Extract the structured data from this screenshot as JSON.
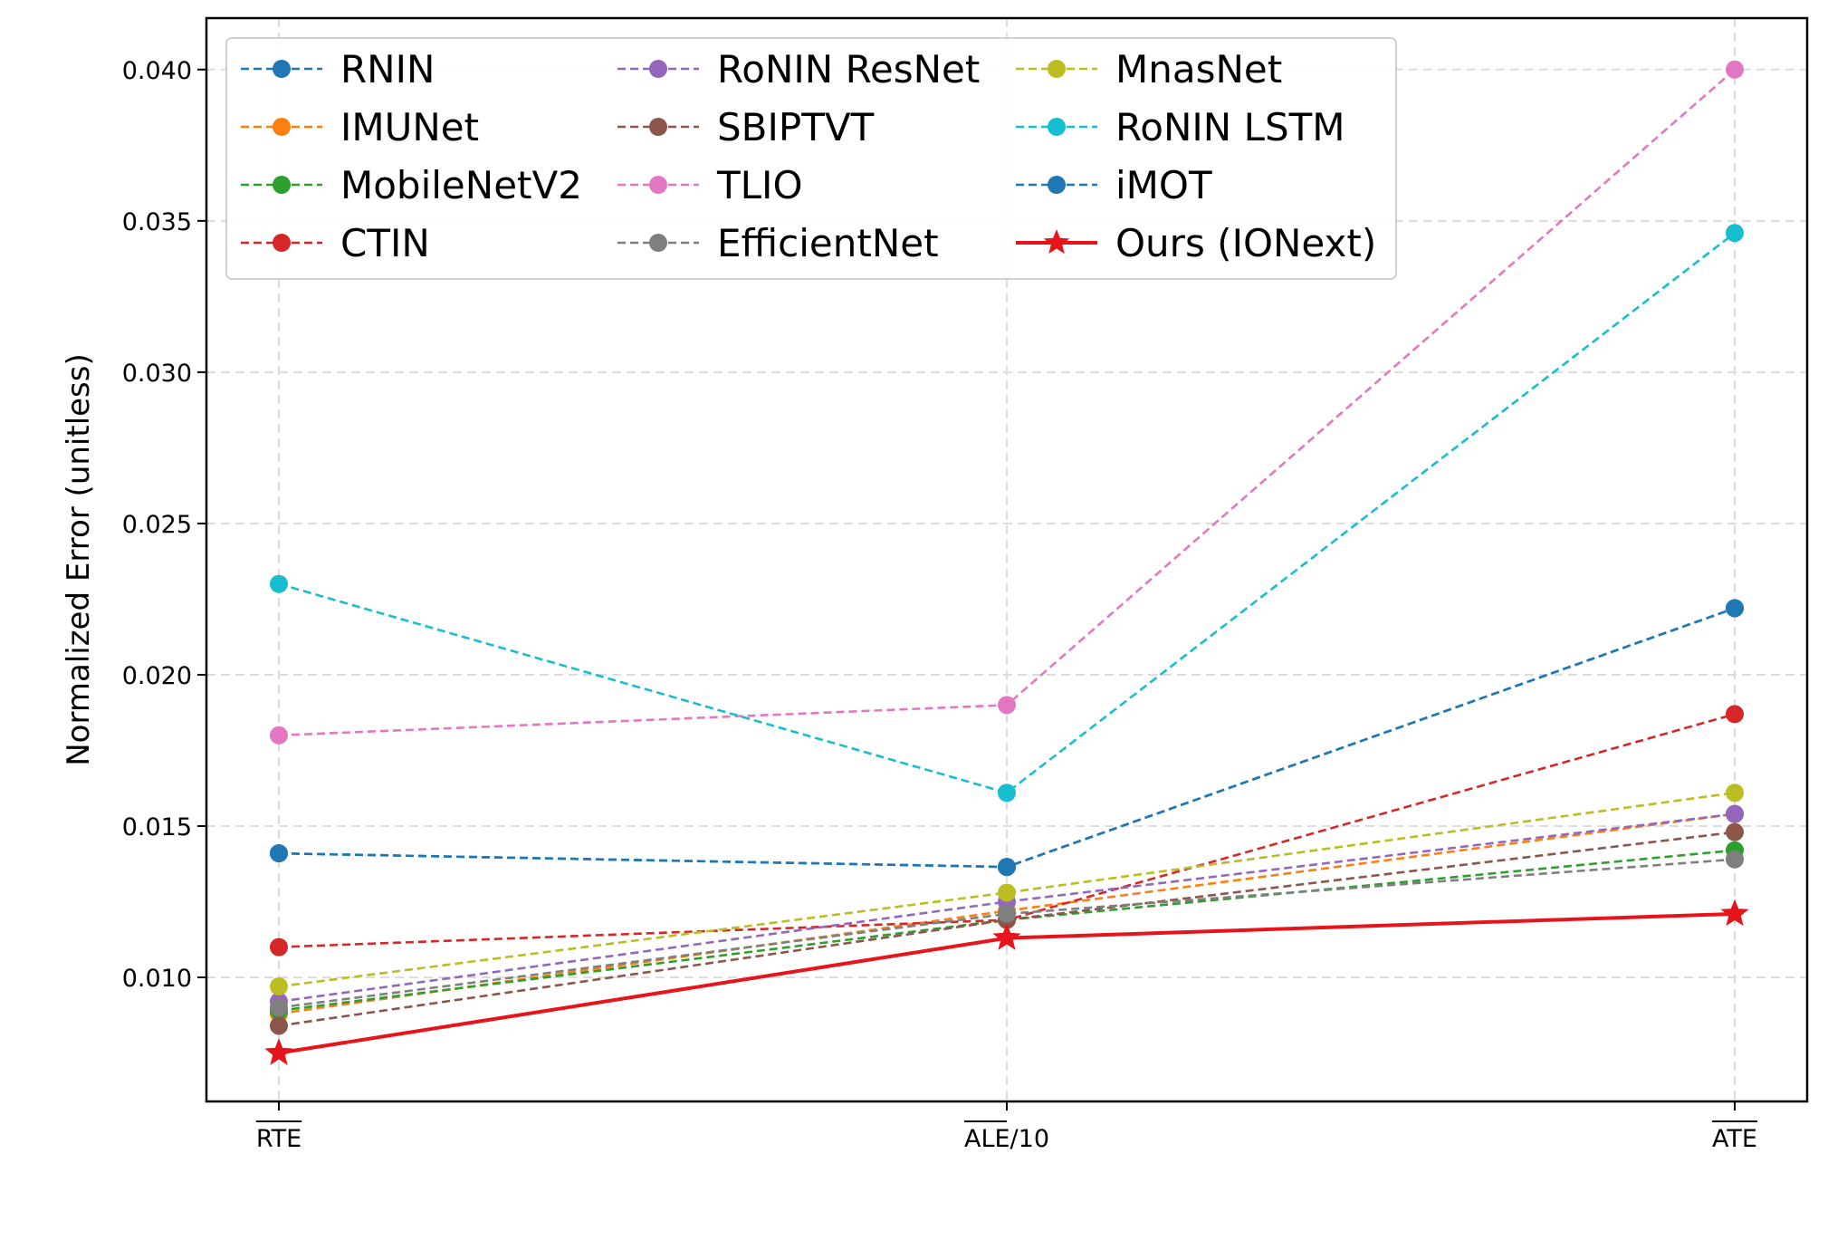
{
  "chart_data": {
    "type": "line",
    "title": "",
    "xlabel": "",
    "ylabel": "Normalized Error (unitless)",
    "categories": [
      "RTE",
      "ALE/10",
      "ATE"
    ],
    "ylim": [
      0.0059,
      0.0417
    ],
    "yticks": [
      "0.010",
      "0.015",
      "0.020",
      "0.025",
      "0.030",
      "0.035",
      "0.040"
    ],
    "grid": true,
    "legend_position": "top-left",
    "series": [
      {
        "name": "RNIN",
        "values": [
          0.0141,
          0.01365,
          0.0222
        ],
        "color": "#1f77b4",
        "style": "dashed",
        "marker": "circle"
      },
      {
        "name": "IMUNet",
        "values": [
          0.0088,
          0.0122,
          0.0154
        ],
        "color": "#ff7f0e",
        "style": "dashed",
        "marker": "circle"
      },
      {
        "name": "MobileNetV2",
        "values": [
          0.0089,
          0.0119,
          0.0142
        ],
        "color": "#2ca02c",
        "style": "dashed",
        "marker": "circle"
      },
      {
        "name": "CTIN",
        "values": [
          0.011,
          0.0119,
          0.0187
        ],
        "color": "#d62728",
        "style": "dashed",
        "marker": "circle"
      },
      {
        "name": "RoNIN ResNet",
        "values": [
          0.0092,
          0.0125,
          0.0154
        ],
        "color": "#9467bd",
        "style": "dashed",
        "marker": "circle"
      },
      {
        "name": "SBIPTVT",
        "values": [
          0.0084,
          0.0119,
          0.0148
        ],
        "color": "#8c564b",
        "style": "dashed",
        "marker": "circle"
      },
      {
        "name": "TLIO",
        "values": [
          0.018,
          0.019,
          0.04
        ],
        "color": "#e377c2",
        "style": "dashed",
        "marker": "circle"
      },
      {
        "name": "EfficientNet",
        "values": [
          0.009,
          0.0121,
          0.0139
        ],
        "color": "#7f7f7f",
        "style": "dashed",
        "marker": "circle"
      },
      {
        "name": "MnasNet",
        "values": [
          0.0097,
          0.0128,
          0.0161
        ],
        "color": "#bcbd22",
        "style": "dashed",
        "marker": "circle"
      },
      {
        "name": "RoNIN LSTM",
        "values": [
          0.023,
          0.0161,
          0.0346
        ],
        "color": "#17becf",
        "style": "dashed",
        "marker": "circle"
      },
      {
        "name": "iMOT",
        "values": [
          0.0141,
          0.01365,
          0.0222
        ],
        "color": "#1f77b4",
        "style": "dashed",
        "marker": "circle"
      },
      {
        "name": "Ours (IONext)",
        "values": [
          0.0075,
          0.0113,
          0.0121
        ],
        "color": "#e8141c",
        "style": "solid",
        "marker": "star"
      }
    ]
  }
}
